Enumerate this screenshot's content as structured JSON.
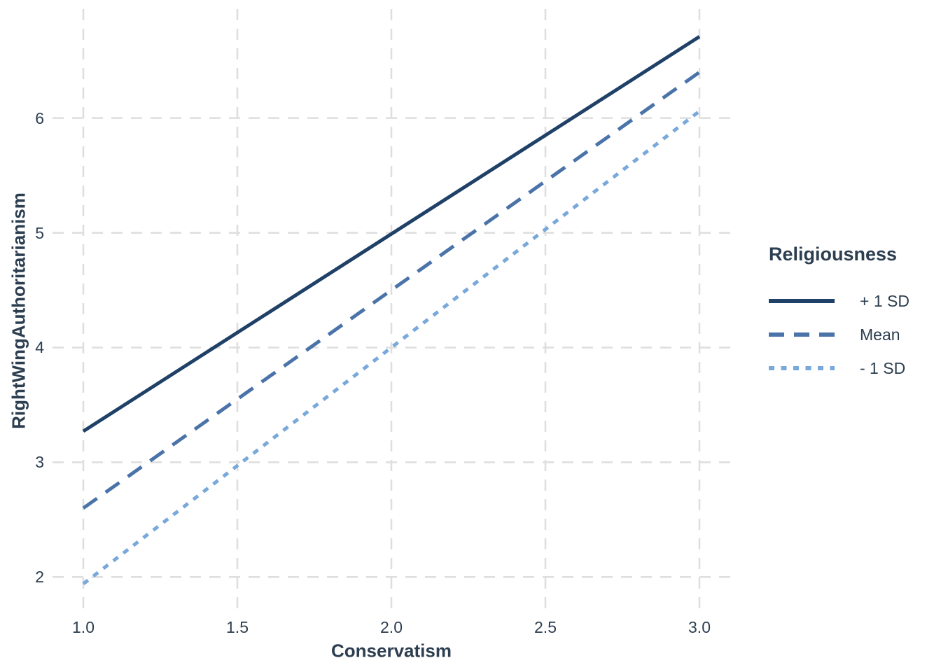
{
  "chart_data": {
    "type": "line",
    "title": "",
    "xlabel": "Conservatism",
    "ylabel": "RightWingAuthoritarianism",
    "xlim": [
      0.9,
      3.1
    ],
    "ylim": [
      1.69,
      6.95
    ],
    "x_tick_values": [
      1.0,
      1.5,
      2.0,
      2.5,
      3.0
    ],
    "x_tick_labels": [
      "1.0",
      "1.5",
      "2.0",
      "2.5",
      "3.0"
    ],
    "y_tick_values": [
      2,
      3,
      4,
      5,
      6
    ],
    "y_tick_labels": [
      "2",
      "3",
      "4",
      "5",
      "6"
    ],
    "grid": {
      "visible": true,
      "style": "dashed",
      "color": "#dedede"
    },
    "legend": {
      "title": "Religiousness",
      "position": "right"
    },
    "series": [
      {
        "name": "+ 1 SD",
        "style": "solid",
        "color": "#1f4067",
        "x": [
          1.0,
          3.0
        ],
        "y": [
          3.27,
          6.71
        ]
      },
      {
        "name": "Mean",
        "style": "dashed",
        "color": "#4a73a9",
        "x": [
          1.0,
          3.0
        ],
        "y": [
          2.6,
          6.4
        ]
      },
      {
        "name": "- 1 SD",
        "style": "dotted",
        "color": "#79a8da",
        "x": [
          1.0,
          3.0
        ],
        "y": [
          1.94,
          6.06
        ]
      }
    ],
    "axis_text_color": "#2c3e50",
    "background_color": "#ffffff"
  }
}
